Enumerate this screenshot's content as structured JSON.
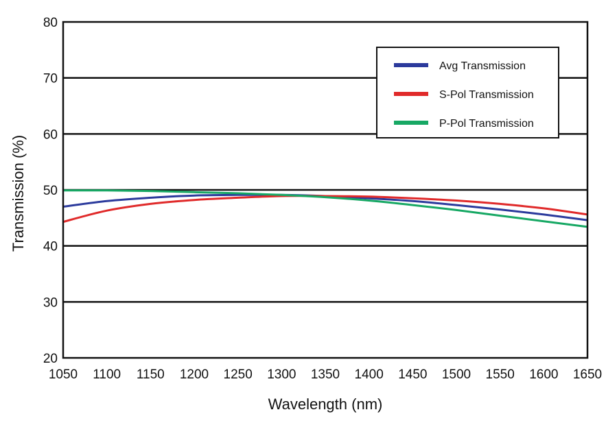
{
  "chart_data": {
    "type": "line",
    "xlabel": "Wavelength (nm)",
    "ylabel": "Transmission (%)",
    "xlim": [
      1050,
      1650
    ],
    "ylim": [
      20,
      80
    ],
    "x_ticks": [
      1050,
      1100,
      1150,
      1200,
      1250,
      1300,
      1350,
      1400,
      1450,
      1500,
      1550,
      1600,
      1650
    ],
    "y_ticks": [
      20,
      30,
      40,
      50,
      60,
      70,
      80
    ],
    "grid": "horizontal",
    "legend_position": "top-right",
    "x": [
      1050,
      1100,
      1150,
      1200,
      1250,
      1300,
      1350,
      1400,
      1450,
      1500,
      1550,
      1600,
      1650
    ],
    "series": [
      {
        "name": "Avg Transmission",
        "color": "#2b3a9c",
        "values": [
          47.0,
          48.0,
          48.6,
          49.0,
          49.1,
          49.1,
          48.9,
          48.5,
          48.0,
          47.3,
          46.5,
          45.6,
          44.6
        ]
      },
      {
        "name": "S-Pol Transmission",
        "color": "#e02a2a",
        "values": [
          44.3,
          46.3,
          47.5,
          48.2,
          48.6,
          48.9,
          48.9,
          48.8,
          48.5,
          48.1,
          47.5,
          46.7,
          45.6
        ]
      },
      {
        "name": "P-Pol Transmission",
        "color": "#17a864",
        "values": [
          49.9,
          49.9,
          49.8,
          49.6,
          49.4,
          49.1,
          48.7,
          48.1,
          47.3,
          46.4,
          45.4,
          44.4,
          43.4
        ]
      }
    ]
  }
}
